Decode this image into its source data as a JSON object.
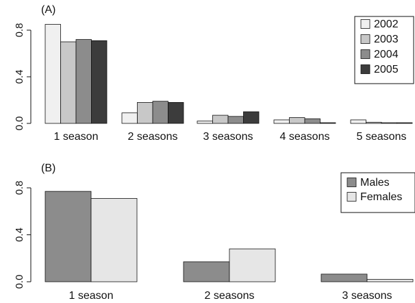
{
  "chart_data": [
    {
      "type": "bar",
      "panel_label": "(A)",
      "categories": [
        "1 season",
        "2 seasons",
        "3 seasons",
        "4 seasons",
        "5 seasons"
      ],
      "series": [
        {
          "name": "2002",
          "color": "#f0f0f0",
          "values": [
            0.85,
            0.09,
            0.02,
            0.03,
            0.03
          ]
        },
        {
          "name": "2003",
          "color": "#c8c8c8",
          "values": [
            0.7,
            0.18,
            0.07,
            0.05,
            0.01
          ]
        },
        {
          "name": "2004",
          "color": "#8c8c8c",
          "values": [
            0.72,
            0.19,
            0.06,
            0.04,
            0.005
          ]
        },
        {
          "name": "2005",
          "color": "#3c3c3c",
          "values": [
            0.71,
            0.18,
            0.1,
            0.005,
            0.003
          ]
        }
      ],
      "yticks": [
        "0.0",
        "0.4",
        "0.8"
      ],
      "ylim": [
        0,
        0.9
      ],
      "legend": "top-right",
      "grid": false
    },
    {
      "type": "bar",
      "panel_label": "(B)",
      "categories": [
        "1 season",
        "2 seasons",
        "3 seasons"
      ],
      "series": [
        {
          "name": "Males",
          "color": "#8c8c8c",
          "values": [
            0.77,
            0.17,
            0.065
          ]
        },
        {
          "name": "Females",
          "color": "#e6e6e6",
          "values": [
            0.71,
            0.28,
            0.02
          ]
        }
      ],
      "yticks": [
        "0.0",
        "0.4",
        "0.8"
      ],
      "ylim": [
        0,
        0.9
      ],
      "legend": "top-right",
      "grid": false
    }
  ]
}
